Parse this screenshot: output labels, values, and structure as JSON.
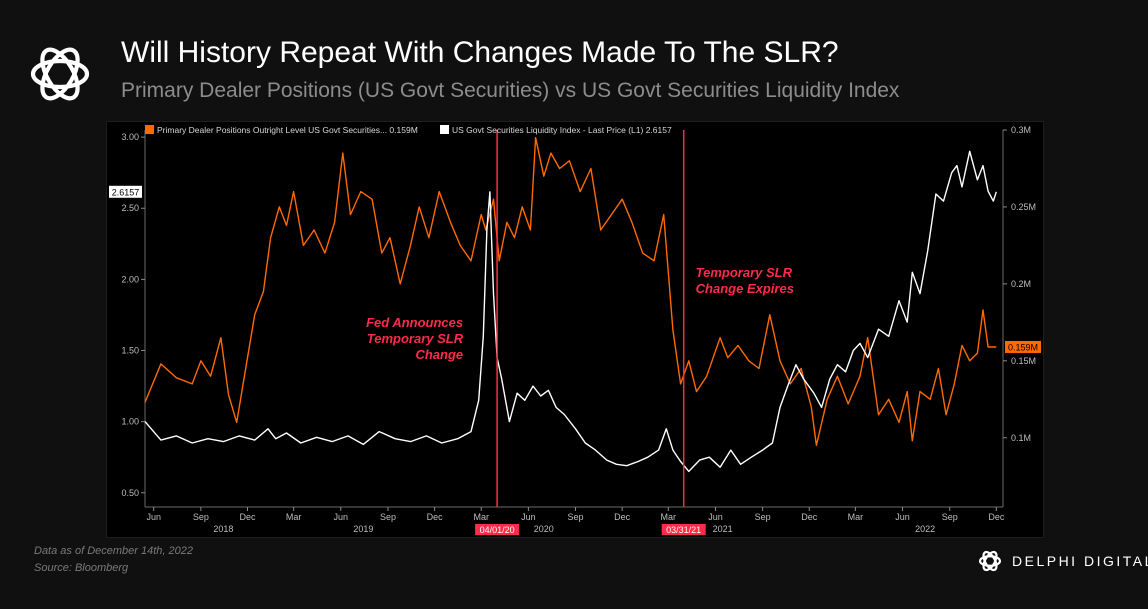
{
  "header": {
    "title": "Will History Repeat With Changes Made To The SLR?",
    "subtitle": "Primary Dealer Positions (US Govt Securities) vs US Govt Securities Liquidity Index"
  },
  "footer": {
    "data_note": "Data as of December  14th, 2022",
    "source": "Source: Bloomberg",
    "brand": "DELPHI DIGITAL"
  },
  "colors": {
    "orange": "#ff6a00",
    "white": "#ffffff",
    "marker": "#ff2b4a",
    "annotation": "#ff2b4a"
  },
  "chart_data": {
    "type": "line",
    "legend_position": "top-left",
    "grid": false,
    "x_range": [
      "2018-05-15",
      "2022-12-14"
    ],
    "x_ticks": [
      {
        "date": "2018-06-01",
        "label": "Jun"
      },
      {
        "date": "2018-09-01",
        "label": "Sep"
      },
      {
        "date": "2018-12-01",
        "label": "Dec"
      },
      {
        "date": "2019-03-01",
        "label": "Mar"
      },
      {
        "date": "2019-06-01",
        "label": "Jun"
      },
      {
        "date": "2019-09-01",
        "label": "Sep"
      },
      {
        "date": "2019-12-01",
        "label": "Dec"
      },
      {
        "date": "2020-03-01",
        "label": "Mar"
      },
      {
        "date": "2020-06-01",
        "label": "Jun"
      },
      {
        "date": "2020-09-01",
        "label": "Sep"
      },
      {
        "date": "2020-12-01",
        "label": "Dec"
      },
      {
        "date": "2021-03-01",
        "label": "Mar"
      },
      {
        "date": "2021-06-01",
        "label": "Jun"
      },
      {
        "date": "2021-09-01",
        "label": "Sep"
      },
      {
        "date": "2021-12-01",
        "label": "Dec"
      },
      {
        "date": "2022-03-01",
        "label": "Mar"
      },
      {
        "date": "2022-06-01",
        "label": "Jun"
      },
      {
        "date": "2022-09-01",
        "label": "Sep"
      },
      {
        "date": "2022-12-01",
        "label": "Dec"
      }
    ],
    "year_labels": [
      {
        "date": "2018-10-15",
        "label": "2018"
      },
      {
        "date": "2019-07-15",
        "label": "2019"
      },
      {
        "date": "2020-07-01",
        "label": "2020"
      },
      {
        "date": "2021-06-15",
        "label": "2021"
      },
      {
        "date": "2022-07-15",
        "label": "2022"
      }
    ],
    "left_axis": {
      "range": [
        0.4,
        3.05
      ],
      "ticks": [
        3.0,
        2.5,
        2.0,
        1.5,
        1.0,
        0.5
      ],
      "tick_labels": [
        "3.00",
        "2.50",
        "2.00",
        "1.50",
        "1.00",
        "0.50"
      ],
      "last_value_label": "2.6157"
    },
    "right_axis": {
      "range": [
        0.055,
        0.3
      ],
      "ticks": [
        0.3,
        0.25,
        0.2,
        0.15,
        0.1
      ],
      "tick_labels": [
        "0.3M",
        "0.25M",
        "0.2M",
        "0.15M",
        "0.1M"
      ],
      "last_value_label": "0.159M"
    },
    "series": [
      {
        "name": "Primary Dealer Positions Outright Level US Govt Securities... 0.159M",
        "axis": "right",
        "color": "#ff6a00",
        "points": [
          [
            "2018-05-15",
            0.123
          ],
          [
            "2018-06-15",
            0.148
          ],
          [
            "2018-07-15",
            0.139
          ],
          [
            "2018-08-15",
            0.135
          ],
          [
            "2018-09-01",
            0.15
          ],
          [
            "2018-09-20",
            0.14
          ],
          [
            "2018-10-10",
            0.165
          ],
          [
            "2018-10-25",
            0.128
          ],
          [
            "2018-11-10",
            0.11
          ],
          [
            "2018-11-25",
            0.14
          ],
          [
            "2018-12-15",
            0.18
          ],
          [
            "2019-01-01",
            0.195
          ],
          [
            "2019-01-15",
            0.23
          ],
          [
            "2019-02-01",
            0.25
          ],
          [
            "2019-02-15",
            0.238
          ],
          [
            "2019-03-01",
            0.26
          ],
          [
            "2019-03-20",
            0.225
          ],
          [
            "2019-04-10",
            0.235
          ],
          [
            "2019-05-01",
            0.22
          ],
          [
            "2019-05-20",
            0.24
          ],
          [
            "2019-06-05",
            0.285
          ],
          [
            "2019-06-20",
            0.245
          ],
          [
            "2019-07-10",
            0.26
          ],
          [
            "2019-08-01",
            0.255
          ],
          [
            "2019-08-20",
            0.22
          ],
          [
            "2019-09-05",
            0.23
          ],
          [
            "2019-09-25",
            0.2
          ],
          [
            "2019-10-15",
            0.225
          ],
          [
            "2019-11-01",
            0.25
          ],
          [
            "2019-11-20",
            0.23
          ],
          [
            "2019-12-10",
            0.26
          ],
          [
            "2020-01-01",
            0.24
          ],
          [
            "2020-01-20",
            0.225
          ],
          [
            "2020-02-10",
            0.215
          ],
          [
            "2020-03-01",
            0.245
          ],
          [
            "2020-03-10",
            0.235
          ],
          [
            "2020-03-25",
            0.255
          ],
          [
            "2020-04-05",
            0.215
          ],
          [
            "2020-04-20",
            0.24
          ],
          [
            "2020-05-05",
            0.23
          ],
          [
            "2020-05-20",
            0.25
          ],
          [
            "2020-06-05",
            0.235
          ],
          [
            "2020-06-15",
            0.295
          ],
          [
            "2020-07-01",
            0.27
          ],
          [
            "2020-07-15",
            0.285
          ],
          [
            "2020-08-01",
            0.275
          ],
          [
            "2020-08-20",
            0.28
          ],
          [
            "2020-09-10",
            0.26
          ],
          [
            "2020-10-01",
            0.275
          ],
          [
            "2020-10-20",
            0.235
          ],
          [
            "2020-11-10",
            0.245
          ],
          [
            "2020-12-01",
            0.255
          ],
          [
            "2020-12-20",
            0.24
          ],
          [
            "2021-01-10",
            0.22
          ],
          [
            "2021-02-01",
            0.215
          ],
          [
            "2021-02-20",
            0.245
          ],
          [
            "2021-03-10",
            0.17
          ],
          [
            "2021-03-25",
            0.135
          ],
          [
            "2021-04-10",
            0.15
          ],
          [
            "2021-04-25",
            0.13
          ],
          [
            "2021-05-15",
            0.14
          ],
          [
            "2021-06-10",
            0.165
          ],
          [
            "2021-06-25",
            0.152
          ],
          [
            "2021-07-15",
            0.16
          ],
          [
            "2021-08-05",
            0.15
          ],
          [
            "2021-08-25",
            0.145
          ],
          [
            "2021-09-15",
            0.18
          ],
          [
            "2021-10-05",
            0.15
          ],
          [
            "2021-10-25",
            0.135
          ],
          [
            "2021-11-15",
            0.145
          ],
          [
            "2021-12-05",
            0.12
          ],
          [
            "2021-12-15",
            0.095
          ],
          [
            "2022-01-05",
            0.125
          ],
          [
            "2022-01-25",
            0.14
          ],
          [
            "2022-02-15",
            0.122
          ],
          [
            "2022-03-10",
            0.14
          ],
          [
            "2022-03-25",
            0.165
          ],
          [
            "2022-04-15",
            0.115
          ],
          [
            "2022-05-05",
            0.125
          ],
          [
            "2022-05-25",
            0.11
          ],
          [
            "2022-06-10",
            0.13
          ],
          [
            "2022-06-20",
            0.098
          ],
          [
            "2022-07-05",
            0.13
          ],
          [
            "2022-07-25",
            0.125
          ],
          [
            "2022-08-10",
            0.145
          ],
          [
            "2022-08-25",
            0.115
          ],
          [
            "2022-09-10",
            0.135
          ],
          [
            "2022-09-25",
            0.16
          ],
          [
            "2022-10-10",
            0.15
          ],
          [
            "2022-10-25",
            0.155
          ],
          [
            "2022-11-05",
            0.183
          ],
          [
            "2022-11-15",
            0.159
          ],
          [
            "2022-12-01",
            0.159
          ]
        ]
      },
      {
        "name": "US Govt Securities Liquidity Index - Last Price (L1) 2.6157",
        "axis": "left",
        "color": "#ffffff",
        "points": [
          [
            "2018-05-15",
            1.0
          ],
          [
            "2018-06-15",
            0.87
          ],
          [
            "2018-07-15",
            0.9
          ],
          [
            "2018-08-15",
            0.85
          ],
          [
            "2018-09-15",
            0.88
          ],
          [
            "2018-10-15",
            0.86
          ],
          [
            "2018-11-15",
            0.9
          ],
          [
            "2018-12-15",
            0.87
          ],
          [
            "2019-01-10",
            0.95
          ],
          [
            "2019-01-25",
            0.88
          ],
          [
            "2019-02-15",
            0.92
          ],
          [
            "2019-03-15",
            0.85
          ],
          [
            "2019-04-15",
            0.89
          ],
          [
            "2019-05-15",
            0.86
          ],
          [
            "2019-06-15",
            0.9
          ],
          [
            "2019-07-15",
            0.84
          ],
          [
            "2019-08-15",
            0.93
          ],
          [
            "2019-09-15",
            0.88
          ],
          [
            "2019-10-15",
            0.86
          ],
          [
            "2019-11-15",
            0.9
          ],
          [
            "2019-12-15",
            0.85
          ],
          [
            "2020-01-15",
            0.88
          ],
          [
            "2020-02-10",
            0.93
          ],
          [
            "2020-02-25",
            1.15
          ],
          [
            "2020-03-05",
            1.6
          ],
          [
            "2020-03-12",
            2.35
          ],
          [
            "2020-03-18",
            2.6157
          ],
          [
            "2020-03-25",
            1.9
          ],
          [
            "2020-04-01",
            1.45
          ],
          [
            "2020-04-10",
            1.3
          ],
          [
            "2020-04-25",
            1.0
          ],
          [
            "2020-05-10",
            1.2
          ],
          [
            "2020-05-25",
            1.15
          ],
          [
            "2020-06-10",
            1.25
          ],
          [
            "2020-06-25",
            1.18
          ],
          [
            "2020-07-10",
            1.22
          ],
          [
            "2020-07-25",
            1.1
          ],
          [
            "2020-08-10",
            1.05
          ],
          [
            "2020-09-01",
            0.95
          ],
          [
            "2020-09-20",
            0.85
          ],
          [
            "2020-10-10",
            0.8
          ],
          [
            "2020-11-01",
            0.73
          ],
          [
            "2020-11-20",
            0.7
          ],
          [
            "2020-12-10",
            0.69
          ],
          [
            "2021-01-01",
            0.72
          ],
          [
            "2021-01-20",
            0.75
          ],
          [
            "2021-02-10",
            0.8
          ],
          [
            "2021-02-25",
            0.95
          ],
          [
            "2021-03-10",
            0.8
          ],
          [
            "2021-03-25",
            0.72
          ],
          [
            "2021-04-10",
            0.65
          ],
          [
            "2021-05-01",
            0.73
          ],
          [
            "2021-05-20",
            0.75
          ],
          [
            "2021-06-10",
            0.68
          ],
          [
            "2021-07-01",
            0.8
          ],
          [
            "2021-07-20",
            0.7
          ],
          [
            "2021-08-10",
            0.75
          ],
          [
            "2021-09-01",
            0.8
          ],
          [
            "2021-09-20",
            0.85
          ],
          [
            "2021-10-05",
            1.1
          ],
          [
            "2021-10-20",
            1.25
          ],
          [
            "2021-11-05",
            1.4
          ],
          [
            "2021-11-20",
            1.3
          ],
          [
            "2021-12-10",
            1.2
          ],
          [
            "2021-12-25",
            1.1
          ],
          [
            "2022-01-10",
            1.3
          ],
          [
            "2022-01-25",
            1.4
          ],
          [
            "2022-02-10",
            1.35
          ],
          [
            "2022-02-25",
            1.5
          ],
          [
            "2022-03-10",
            1.55
          ],
          [
            "2022-03-25",
            1.45
          ],
          [
            "2022-04-15",
            1.65
          ],
          [
            "2022-05-05",
            1.6
          ],
          [
            "2022-05-25",
            1.85
          ],
          [
            "2022-06-10",
            1.7
          ],
          [
            "2022-06-20",
            2.05
          ],
          [
            "2022-07-05",
            1.9
          ],
          [
            "2022-07-20",
            2.2
          ],
          [
            "2022-08-05",
            2.6
          ],
          [
            "2022-08-20",
            2.55
          ],
          [
            "2022-09-05",
            2.75
          ],
          [
            "2022-09-15",
            2.8
          ],
          [
            "2022-09-25",
            2.65
          ],
          [
            "2022-10-10",
            2.9
          ],
          [
            "2022-10-25",
            2.7
          ],
          [
            "2022-11-05",
            2.8
          ],
          [
            "2022-11-15",
            2.62
          ],
          [
            "2022-11-25",
            2.55
          ],
          [
            "2022-12-01",
            2.6157
          ]
        ]
      }
    ],
    "events": [
      {
        "date": "2020-04-01",
        "label": "04/01/20",
        "annotation": [
          "Fed Announces",
          "Temporary SLR",
          "Change"
        ]
      },
      {
        "date": "2021-03-31",
        "label": "03/31/21",
        "annotation": [
          "Temporary SLR",
          "Change Expires"
        ]
      }
    ]
  }
}
